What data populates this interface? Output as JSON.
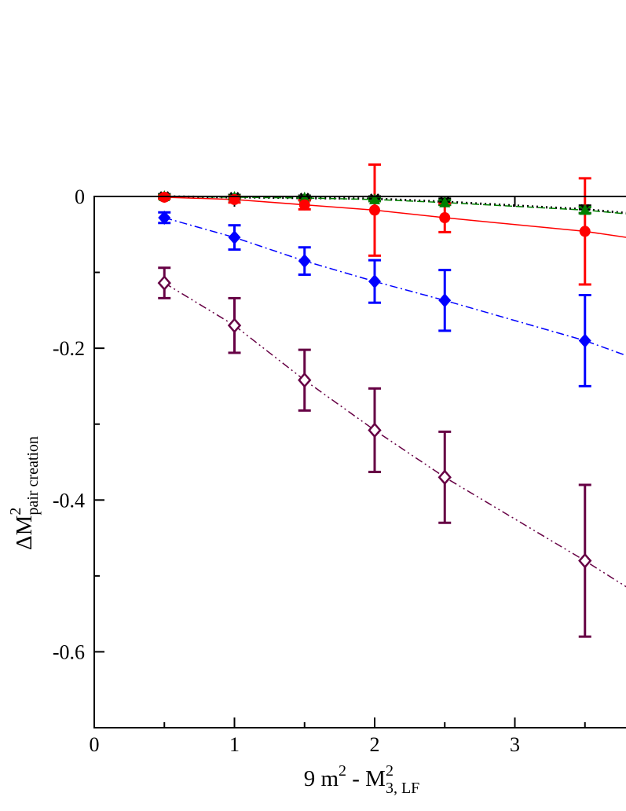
{
  "chart_data": {
    "type": "scatter",
    "title": "",
    "xlabel": {
      "base": "9 m",
      "sup": "2",
      "mid": " - M",
      "sup2": "2",
      "sub": "3, LF"
    },
    "ylabel": {
      "base": "ΔM",
      "sup": "2",
      "sub": "pair creation"
    },
    "xlim": [
      0,
      3.8
    ],
    "ylim": [
      -0.7,
      0
    ],
    "x_ticks": [
      0,
      1,
      2,
      3
    ],
    "x_tick_labels": [
      "0",
      "1",
      "2",
      "3"
    ],
    "y_ticks": [
      0,
      -0.2,
      -0.4,
      -0.6
    ],
    "y_tick_labels": [
      "0",
      "-0.2",
      "-0.4",
      "-0.6"
    ],
    "x_minor_ticks": [
      0.5,
      1.5,
      2.5,
      3.5
    ],
    "y_minor_ticks": [
      -0.1,
      -0.3,
      -0.5
    ],
    "series": [
      {
        "name": "black-stars",
        "color": "#000000",
        "marker": "star",
        "line": "dotted",
        "x": [
          0.5,
          1.0,
          1.5,
          2.0,
          2.5,
          3.5
        ],
        "y": [
          0.0,
          -0.001,
          -0.002,
          -0.003,
          -0.007,
          -0.017
        ],
        "err": [
          0.003,
          0.003,
          0.003,
          0.003,
          0.004,
          0.005
        ],
        "fit_end": [
          3.8,
          -0.022
        ]
      },
      {
        "name": "green-triangles",
        "color": "#008000",
        "marker": "triangle",
        "line": "dashed",
        "x": [
          0.5,
          1.0,
          1.5,
          2.0,
          2.5,
          3.5
        ],
        "y": [
          0.0,
          -0.001,
          -0.002,
          -0.004,
          -0.008,
          -0.018
        ],
        "err": [
          0.002,
          0.002,
          0.002,
          0.002,
          0.003,
          0.004
        ],
        "fit_end": [
          3.8,
          -0.023
        ]
      },
      {
        "name": "red-circles",
        "color": "#ff0000",
        "marker": "circle",
        "line": "solid",
        "x": [
          0.5,
          1.0,
          1.5,
          2.0,
          2.5,
          3.5
        ],
        "y": [
          -0.001,
          -0.004,
          -0.011,
          -0.018,
          -0.028,
          -0.046
        ],
        "err": [
          0.002,
          0.004,
          0.006,
          0.06,
          0.019,
          0.07
        ],
        "fit_end": [
          3.8,
          -0.054
        ]
      },
      {
        "name": "blue-diamonds",
        "color": "#0000ff",
        "marker": "diamond",
        "line": "dashdot",
        "x": [
          0.5,
          1.0,
          1.5,
          2.0,
          2.5,
          3.5
        ],
        "y": [
          -0.028,
          -0.054,
          -0.085,
          -0.112,
          -0.137,
          -0.19
        ],
        "err": [
          0.007,
          0.016,
          0.018,
          0.028,
          0.04,
          0.06
        ],
        "fit_end": [
          3.8,
          -0.21
        ]
      },
      {
        "name": "purple-open-diamonds",
        "color": "#660044",
        "marker": "open-diamond",
        "line": "dashdotdot",
        "x": [
          0.5,
          1.0,
          1.5,
          2.0,
          2.5,
          3.5
        ],
        "y": [
          -0.114,
          -0.17,
          -0.242,
          -0.308,
          -0.37,
          -0.48
        ],
        "err": [
          0.02,
          0.036,
          0.04,
          0.055,
          0.06,
          0.1
        ],
        "fit_end": [
          3.8,
          -0.515
        ]
      }
    ]
  }
}
